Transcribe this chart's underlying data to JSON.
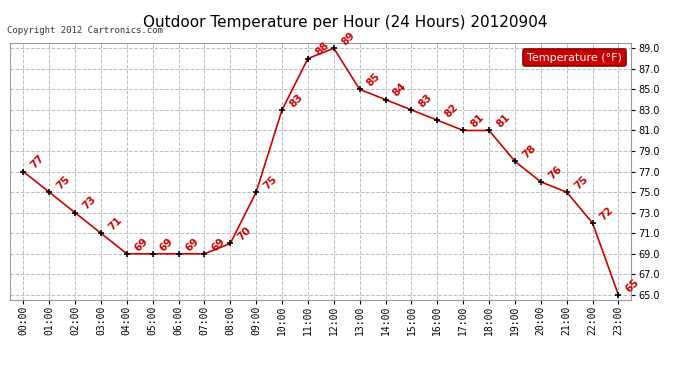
{
  "title": "Outdoor Temperature per Hour (24 Hours) 20120904",
  "copyright_text": "Copyright 2012 Cartronics.com",
  "legend_label": "Temperature (°F)",
  "hours": [
    "00:00",
    "01:00",
    "02:00",
    "03:00",
    "04:00",
    "05:00",
    "06:00",
    "07:00",
    "08:00",
    "09:00",
    "10:00",
    "11:00",
    "12:00",
    "13:00",
    "14:00",
    "15:00",
    "16:00",
    "17:00",
    "18:00",
    "19:00",
    "20:00",
    "21:00",
    "22:00",
    "23:00"
  ],
  "temps": [
    77,
    75,
    73,
    71,
    69,
    69,
    69,
    69,
    70,
    75,
    83,
    88,
    89,
    85,
    84,
    83,
    82,
    81,
    81,
    78,
    76,
    75,
    72,
    65
  ],
  "line_color": "#cc0000",
  "marker_color": "#000000",
  "label_color": "#cc0000",
  "grid_color": "#bbbbbb",
  "background_color": "#ffffff",
  "outer_background": "#ffffff",
  "ylim_min": 65.0,
  "ylim_max": 89.0,
  "yticks": [
    65.0,
    67.0,
    69.0,
    71.0,
    73.0,
    75.0,
    77.0,
    79.0,
    81.0,
    83.0,
    85.0,
    87.0,
    89.0
  ],
  "title_fontsize": 11,
  "label_fontsize": 7.5,
  "tick_fontsize": 7,
  "copyright_fontsize": 6.5,
  "legend_fontsize": 8
}
